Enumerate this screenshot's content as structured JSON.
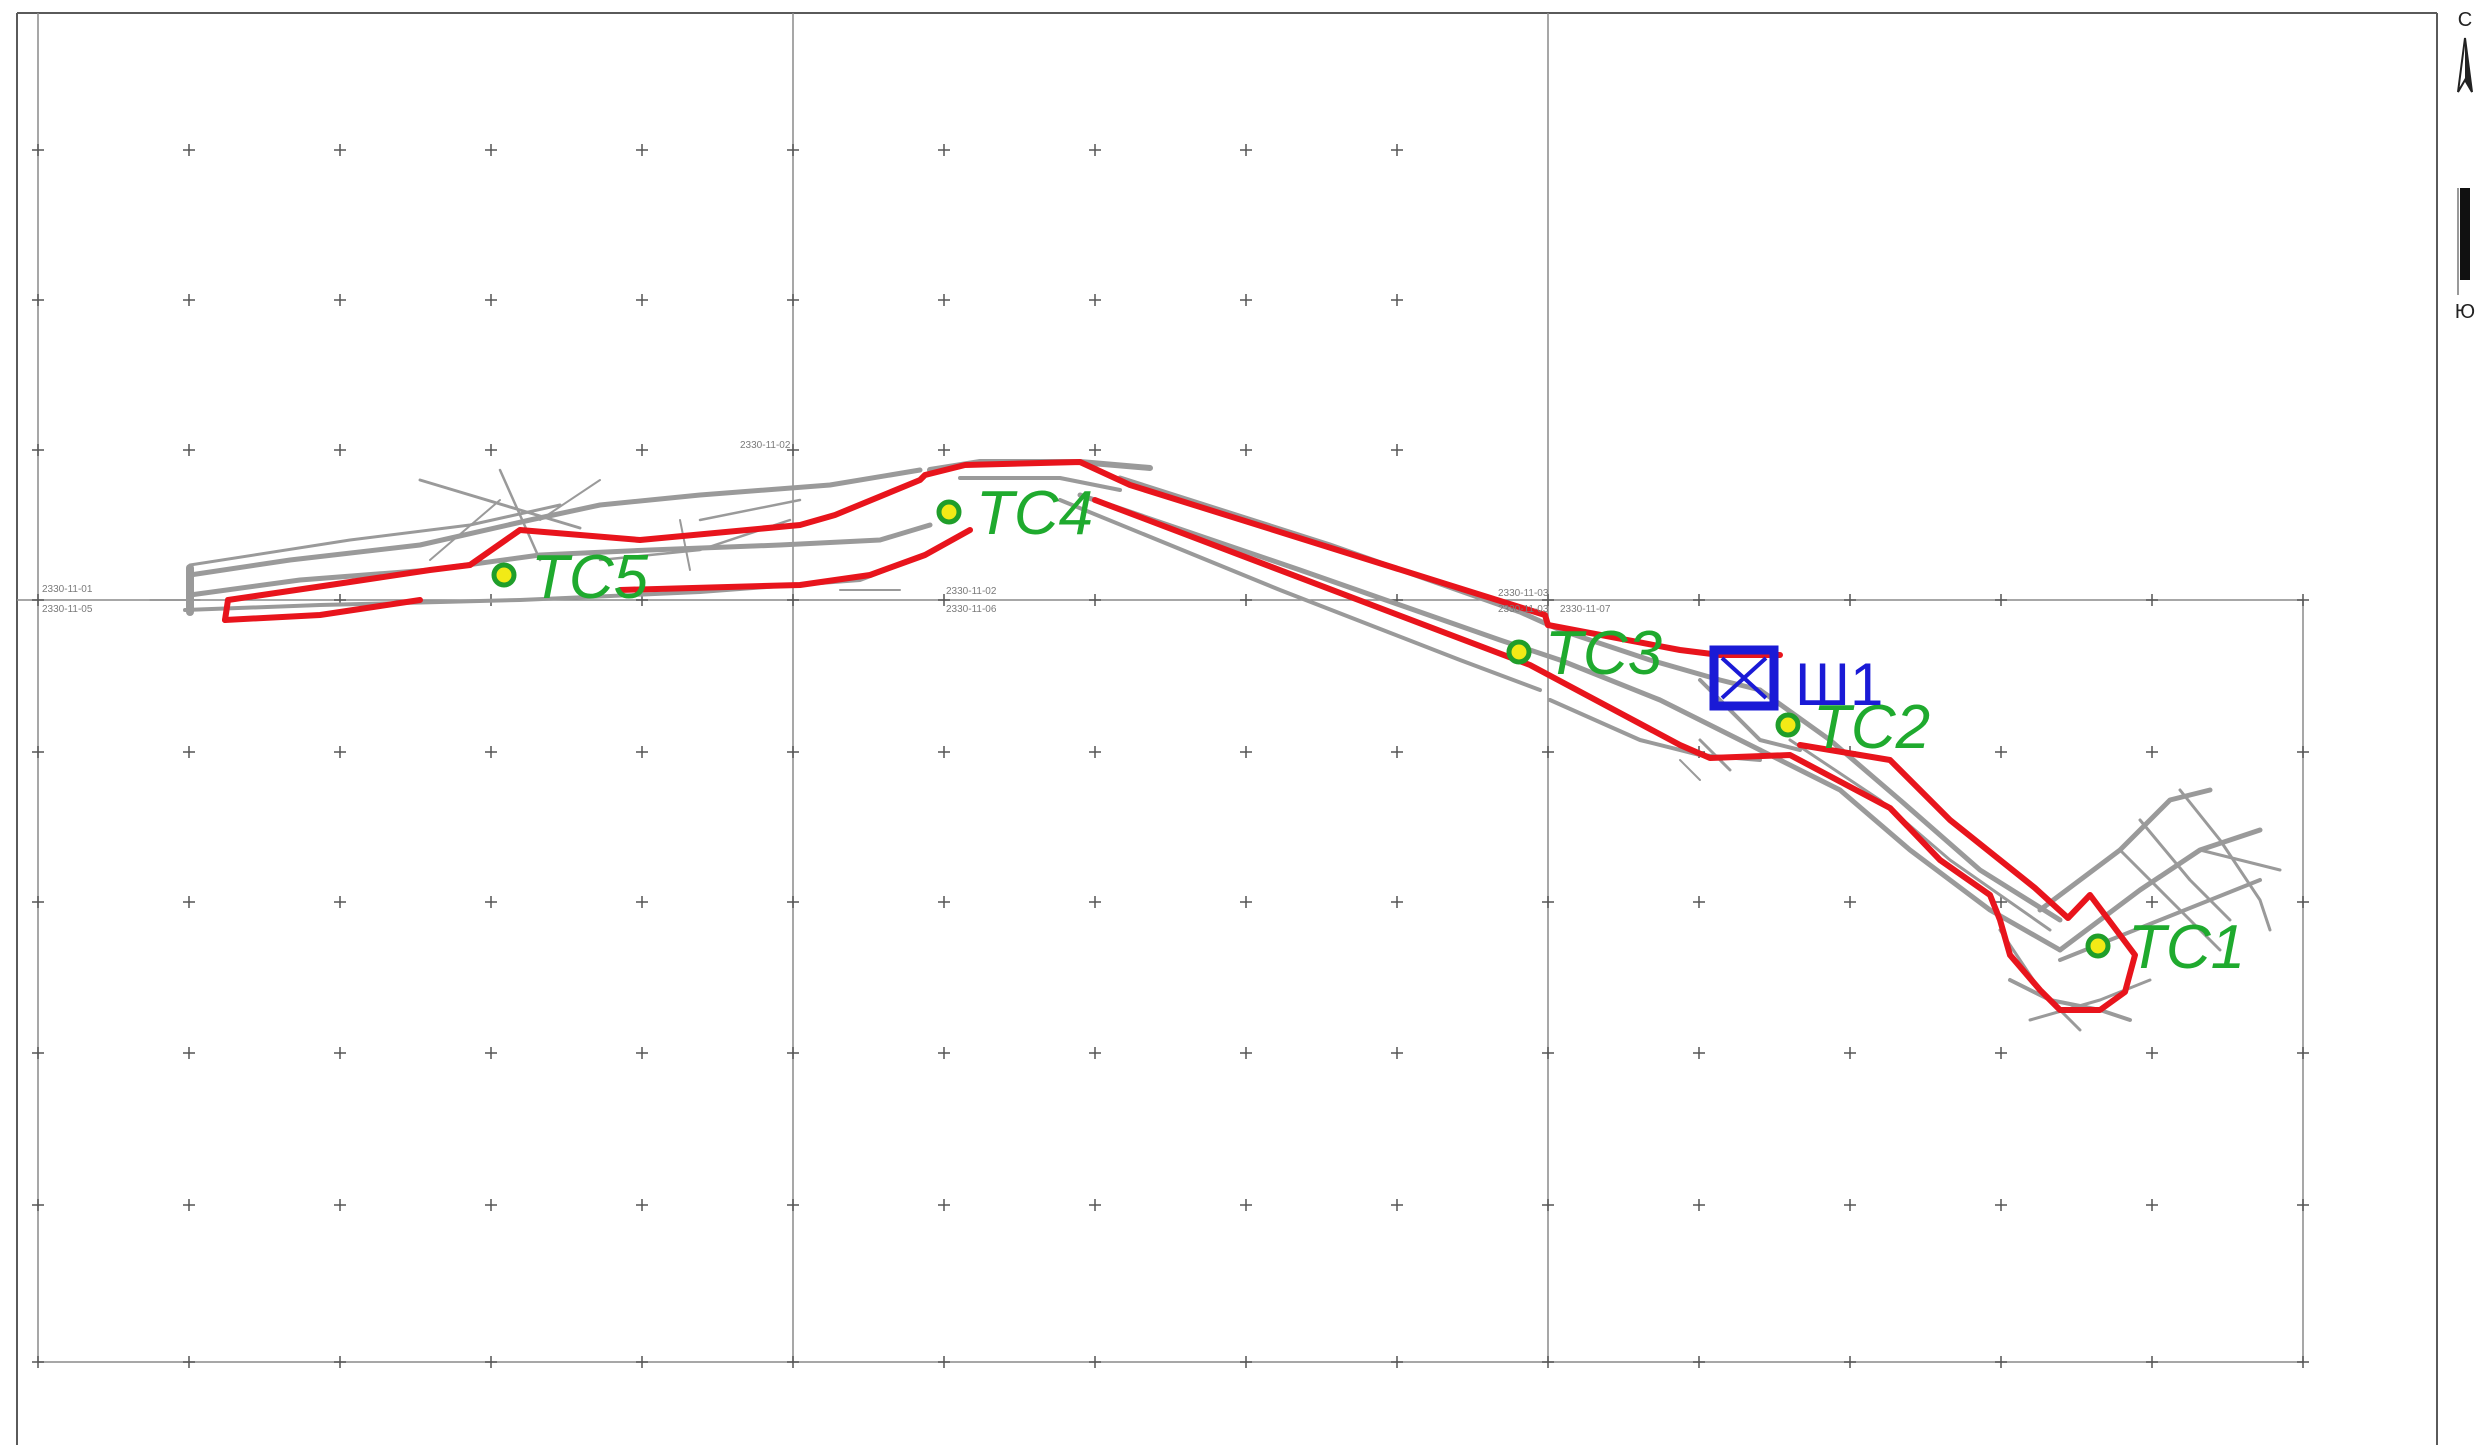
{
  "map": {
    "colors": {
      "frame": "#5a5a5a",
      "grid": "#8a8a8a",
      "workings": "#9a9a9a",
      "boundary": "#e8141c",
      "station_fill": "#f2ea16",
      "station_ring": "#1f9e2a",
      "station_text": "#1faa2e",
      "shaft": "#1a1ad6"
    },
    "stations": [
      {
        "id": "tc1",
        "label": "ТС1"
      },
      {
        "id": "tc2",
        "label": "ТС2"
      },
      {
        "id": "tc3",
        "label": "ТС3"
      },
      {
        "id": "tc4",
        "label": "ТС4"
      },
      {
        "id": "tc5",
        "label": "ТС5"
      }
    ],
    "shaft": {
      "label": "Ш1",
      "icon": "mine-shaft-icon"
    },
    "sheet_labels": [
      "2330-11-01",
      "2330-11-05",
      "2330-11-02",
      "2330-11-02",
      "2330-11-06",
      "2330-11-03",
      "2330-11-03",
      "2330-11-07"
    ],
    "compass": {
      "north": "С",
      "south": "Ю",
      "icon": "north-arrow-icon"
    }
  }
}
